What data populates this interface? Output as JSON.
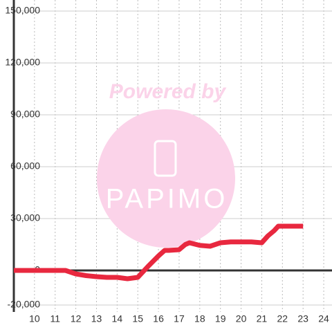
{
  "chart_data": {
    "type": "line",
    "watermark": {
      "top": "Powered by",
      "bottom": "PAPIMO"
    },
    "series": [
      {
        "color": "#e8283f",
        "x": [
          9,
          11.5,
          12,
          12.5,
          13,
          13.5,
          14,
          14.5,
          15,
          15.5,
          16,
          16.3,
          16.5,
          17,
          17.3,
          17.5,
          18,
          18.5,
          19,
          19.5,
          20,
          20.5,
          21,
          21.3,
          21.6,
          21.8,
          22,
          22.5,
          23
        ],
        "values": [
          0,
          0,
          -2000,
          -3000,
          -3600,
          -4000,
          -4000,
          -4800,
          -4000,
          2400,
          8400,
          11600,
          11600,
          12000,
          15000,
          16000,
          14500,
          14000,
          16000,
          16500,
          16500,
          16500,
          16000,
          20000,
          23000,
          25600,
          25600,
          25600,
          25600
        ]
      }
    ],
    "xlim": [
      9,
      24.4
    ],
    "xticks": [
      10,
      11,
      12,
      13,
      14,
      15,
      16,
      17,
      18,
      19,
      20,
      21,
      22,
      23,
      24
    ],
    "ylim": [
      -20000,
      150000
    ],
    "yticks": [
      {
        "value": -20000,
        "label": "-20,000"
      },
      0,
      {
        "value": 30000,
        "label": "30,000"
      },
      {
        "value": 60000,
        "label": "60,000"
      },
      {
        "value": 90000,
        "label": "90,000"
      },
      {
        "value": 120000,
        "label": "120,000"
      },
      {
        "value": 150000,
        "label": "150,000"
      }
    ],
    "grid": true
  }
}
